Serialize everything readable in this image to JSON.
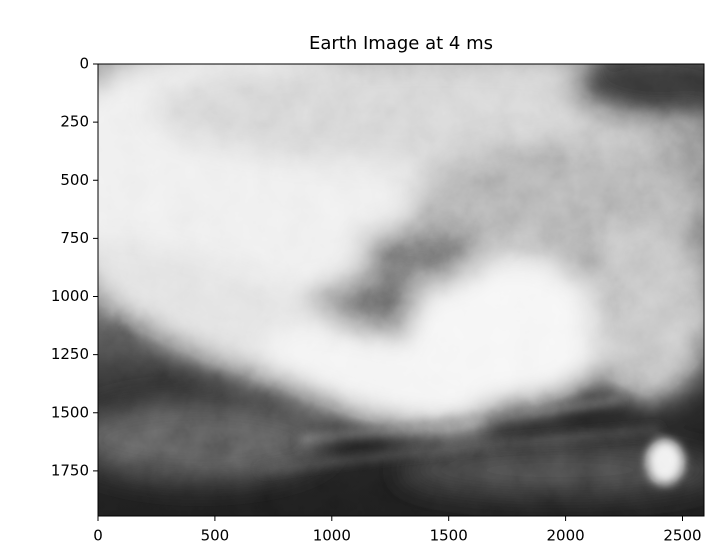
{
  "chart_data": {
    "type": "image",
    "title": "Earth Image at 4 ms",
    "xlim": [
      0,
      2592
    ],
    "ylim": [
      1944,
      0
    ],
    "xticks": [
      0,
      500,
      1000,
      1500,
      2000,
      2500
    ],
    "yticks": [
      0,
      250,
      500,
      750,
      1000,
      1250,
      1500,
      1750
    ]
  }
}
